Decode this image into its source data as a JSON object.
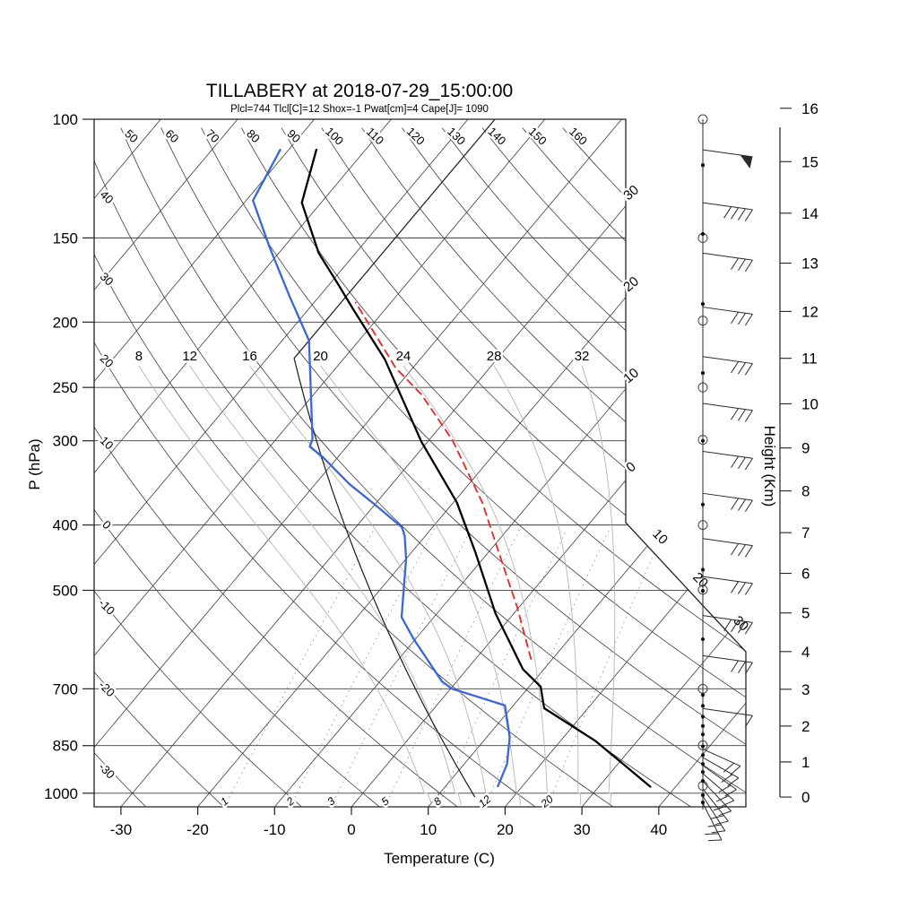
{
  "title": "TILLABERY at 2018-07-29_15:00:00",
  "subtitle": "Plcl=744 Tlcl[C]=12 Shox=-1 Pwat[cm]=4 Cape[J]= 1090",
  "colors": {
    "title": "#000000",
    "subtitle": "#bd5a3c",
    "grid": "#3c3c3c",
    "moist_adiabat": "#b4b4b4",
    "mixing_ratio": "#8a8a8a",
    "temperature": "#000000",
    "dewpoint": "#3a66d9",
    "parcel": "#e03030",
    "std_atmosphere": "#1a1a1a",
    "wind": "#2a2a2a"
  },
  "axes": {
    "x": {
      "label": "Temperature (C)",
      "ticks": [
        -30,
        -20,
        -10,
        0,
        10,
        20,
        30,
        40
      ]
    },
    "pressure": {
      "label": "P (hPa)",
      "ticks": [
        100,
        150,
        200,
        250,
        300,
        400,
        500,
        700,
        850,
        1000
      ]
    },
    "height": {
      "label": "Height (Km)",
      "ticks": [
        0,
        1,
        2,
        3,
        4,
        5,
        6,
        7,
        8,
        9,
        10,
        11,
        12,
        13,
        14,
        15,
        16
      ]
    }
  },
  "chart_data": {
    "type": "line",
    "subtype": "skewT-logP-sounding",
    "station": "TILLABERY",
    "datetime": "2018-07-29_15:00:00",
    "indices": {
      "Plcl": 744,
      "Tlcl_C": 12,
      "Shox": -1,
      "Pwat_cm": 4,
      "Cape_J": 1090
    },
    "background": {
      "isotherms_c": {
        "min": -120,
        "max": 40,
        "step": 10,
        "right_edge_values": [
          -30,
          -20,
          -10,
          0
        ],
        "right_edge_labels": [
          "30",
          "20",
          "10",
          "0"
        ],
        "slant_values": [
          10,
          20,
          30
        ],
        "slant_labels": [
          "10",
          "20",
          "30"
        ]
      },
      "dry_adiabats_c": {
        "min": -30,
        "max": 160,
        "step": 10,
        "top_labeled_values": [
          50,
          60,
          70,
          80,
          90,
          100,
          110,
          120,
          130,
          140,
          150,
          160
        ],
        "left_labeled_values": [
          40,
          30,
          20,
          10,
          0,
          -10,
          -20,
          -30
        ]
      },
      "moist_adiabats_c": [
        8,
        12,
        16,
        20,
        24,
        28,
        32
      ],
      "mixing_ratio_g_kg": [
        1,
        2,
        3,
        5,
        8,
        12,
        20
      ],
      "std_atmosphere": {
        "surface_p_hpa": 1013.25,
        "surface_t_c": 15,
        "lapse_c_per_km": 6.5,
        "tropopause_p_hpa": 226,
        "stratosphere_t_c": -56.5
      }
    },
    "series": [
      {
        "name": "temperature",
        "units": [
          "hPa",
          "C"
        ],
        "points": [
          [
            978,
            36.7
          ],
          [
            836,
            24.5
          ],
          [
            748,
            14.3
          ],
          [
            695,
            11.5
          ],
          [
            655,
            7.3
          ],
          [
            541,
            -2.4
          ],
          [
            440,
            -11.6
          ],
          [
            370,
            -19.6
          ],
          [
            301,
            -30.8
          ],
          [
            227,
            -44.6
          ],
          [
            192,
            -54.0
          ],
          [
            175,
            -59.1
          ],
          [
            158,
            -64.8
          ],
          [
            133,
            -72.5
          ],
          [
            111,
            -76.4
          ]
        ]
      },
      {
        "name": "dewpoint",
        "units": [
          "hPa",
          "C"
        ],
        "points": [
          [
            976,
            16.8
          ],
          [
            906,
            15.6
          ],
          [
            826,
            13.0
          ],
          [
            741,
            8.9
          ],
          [
            700,
            0.2
          ],
          [
            683,
            -1.9
          ],
          [
            590,
            -10.3
          ],
          [
            548,
            -14.2
          ],
          [
            498,
            -17.0
          ],
          [
            449,
            -20.0
          ],
          [
            415,
            -22.7
          ],
          [
            403,
            -24.0
          ],
          [
            373,
            -30.0
          ],
          [
            348,
            -35.5
          ],
          [
            317,
            -42.0
          ],
          [
            306,
            -44.8
          ],
          [
            298,
            -45.3
          ],
          [
            213,
            -56.5
          ],
          [
            183,
            -63.9
          ],
          [
            155,
            -71.8
          ],
          [
            132,
            -79.1
          ],
          [
            111,
            -81.1
          ]
        ]
      },
      {
        "name": "parcel",
        "units": [
          "hPa",
          "C"
        ],
        "points": [
          [
            632,
            7.2
          ],
          [
            529,
            -0.3
          ],
          [
            468,
            -5.8
          ],
          [
            370,
            -16.3
          ],
          [
            299,
            -27.0
          ],
          [
            256,
            -36.0
          ],
          [
            234,
            -42.2
          ],
          [
            187,
            -54.6
          ]
        ]
      }
    ],
    "wind_column": {
      "circles_p": [
        100,
        150,
        199,
        250,
        299,
        400,
        499,
        700,
        849,
        975
      ],
      "dots_p": [
        117,
        148,
        188,
        238,
        300,
        373,
        466,
        501,
        591,
        715,
        742,
        770,
        795,
        818,
        852,
        878,
        905,
        930,
        959,
        1007,
        1032
      ],
      "barbs": [
        {
          "p": 111,
          "type": "flag"
        },
        {
          "p": 133,
          "feathers": 4
        },
        {
          "p": 158,
          "feathers": 3
        },
        {
          "p": 190,
          "feathers": 3
        },
        {
          "p": 225,
          "feathers": 3
        },
        {
          "p": 264,
          "feathers": 3
        },
        {
          "p": 311,
          "feathers": 3
        },
        {
          "p": 359,
          "feathers": 3
        },
        {
          "p": 419,
          "feathers": 3
        },
        {
          "p": 477,
          "feathers": 3
        },
        {
          "p": 545,
          "feathers": 4
        },
        {
          "p": 625,
          "feathers": 3
        },
        {
          "p": 749,
          "feathers": 1
        },
        {
          "p": 860,
          "feathers": 2
        },
        {
          "p": 885,
          "feathers": 2
        },
        {
          "p": 910,
          "feathers": 2
        },
        {
          "p": 935,
          "feathers": 2
        },
        {
          "p": 960,
          "feathers": 2
        },
        {
          "p": 985,
          "feathers": 2
        },
        {
          "p": 1010,
          "feathers": 2
        },
        {
          "p": 1035,
          "feathers": 2
        }
      ]
    }
  }
}
